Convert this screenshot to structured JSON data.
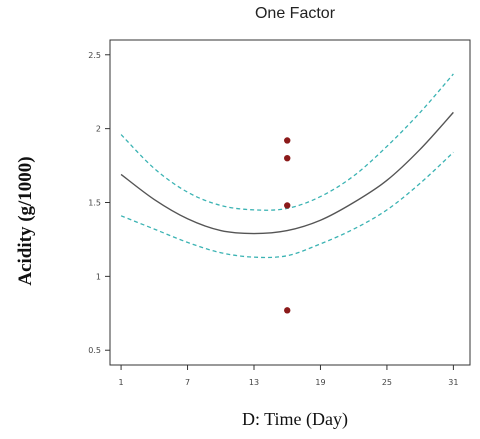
{
  "chart_data": {
    "type": "line",
    "title": "One Factor",
    "xlabel": "D: Time (Day)",
    "ylabel": "Acidity (g/1000)",
    "xlim": [
      0,
      32.5
    ],
    "ylim": [
      0.4,
      2.6
    ],
    "x_ticks": [
      1,
      7,
      13,
      19,
      25,
      31
    ],
    "x_tick_labels": [
      "1",
      "7",
      "13",
      "19",
      "25",
      "31"
    ],
    "y_ticks": [
      0.5,
      1,
      1.5,
      2,
      2.5
    ],
    "y_tick_labels": [
      "0.5",
      "1",
      "1.5",
      "2",
      "2.5"
    ],
    "grid": false,
    "series": [
      {
        "role": "prediction",
        "style": "solid",
        "color": "#555555",
        "x": [
          1,
          4,
          7,
          10,
          13,
          16,
          19,
          22,
          25,
          28,
          31
        ],
        "y": [
          1.69,
          1.52,
          1.39,
          1.31,
          1.29,
          1.31,
          1.38,
          1.5,
          1.65,
          1.86,
          2.11
        ]
      },
      {
        "role": "upper-band",
        "style": "dashed",
        "color": "#3bb3b3",
        "x": [
          1,
          4,
          7,
          10,
          13,
          16,
          19,
          22,
          25,
          28,
          31
        ],
        "y": [
          1.96,
          1.73,
          1.57,
          1.48,
          1.45,
          1.46,
          1.54,
          1.68,
          1.88,
          2.11,
          2.37
        ]
      },
      {
        "role": "lower-band",
        "style": "dashed",
        "color": "#3bb3b3",
        "x": [
          1,
          4,
          7,
          10,
          13,
          16,
          19,
          22,
          25,
          28,
          31
        ],
        "y": [
          1.41,
          1.32,
          1.23,
          1.16,
          1.13,
          1.14,
          1.22,
          1.32,
          1.45,
          1.63,
          1.84
        ]
      }
    ],
    "points": {
      "color": "#8b1a1a",
      "x": [
        16,
        16,
        16,
        16
      ],
      "y": [
        1.92,
        1.8,
        1.48,
        0.77
      ]
    }
  }
}
